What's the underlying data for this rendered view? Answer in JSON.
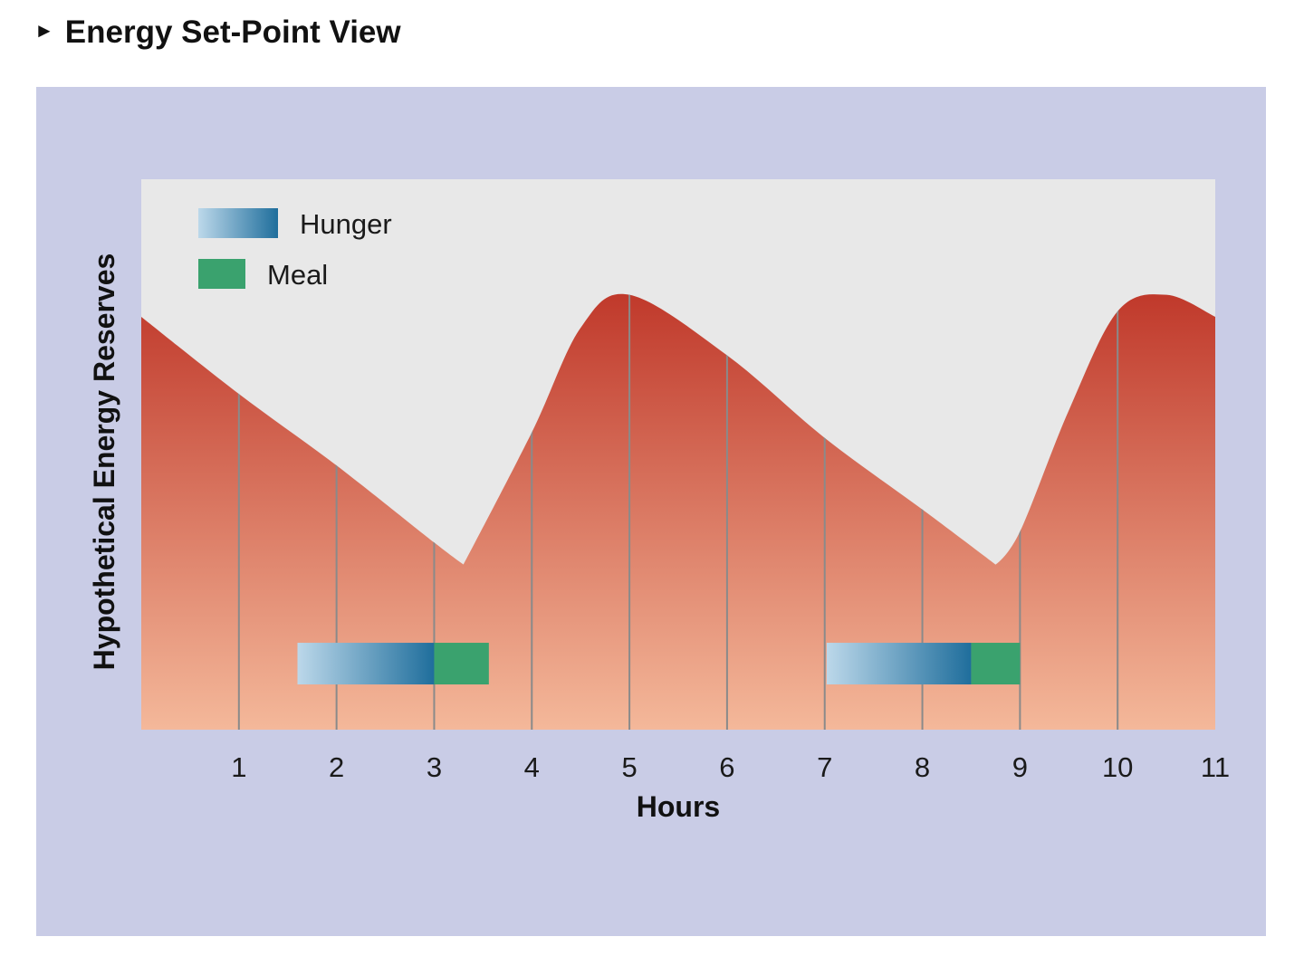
{
  "header": {
    "title": "Energy Set-Point View",
    "arrow_glyph": "►"
  },
  "chart_data": {
    "type": "area",
    "xlabel": "Hours",
    "ylabel": "Hypothetical Energy Reserves",
    "xlim": [
      0,
      11
    ],
    "ylim": [
      0,
      10
    ],
    "x_ticks": [
      1,
      2,
      3,
      4,
      5,
      6,
      7,
      8,
      9,
      10,
      11
    ],
    "series": [
      {
        "values_x": [
          0,
          1,
          2,
          3,
          3.3,
          4,
          4.5,
          5,
          6,
          7,
          8,
          8.75,
          9,
          9.5,
          10,
          10.5,
          11
        ],
        "values_y": [
          7.5,
          6.1,
          4.8,
          3.4,
          3.0,
          5.4,
          7.3,
          7.9,
          6.8,
          5.3,
          4.0,
          3.0,
          3.6,
          5.8,
          7.6,
          7.9,
          7.5
        ]
      }
    ],
    "legend": {
      "position": "top-left",
      "entries": [
        {
          "label": "Hunger",
          "kind": "hunger"
        },
        {
          "label": "Meal",
          "kind": "meal"
        }
      ]
    },
    "intervals": [
      {
        "kind": "hunger",
        "start": 1.6,
        "end": 3.0
      },
      {
        "kind": "meal",
        "start": 3.0,
        "end": 3.56
      },
      {
        "kind": "hunger",
        "start": 7.02,
        "end": 8.5
      },
      {
        "kind": "meal",
        "start": 8.5,
        "end": 9.0
      }
    ],
    "interval_level": 1.2,
    "grid": true,
    "colors": {
      "panel_background": "#c9cce6",
      "plot_background": "#e8e8e8",
      "fill_top": "#c0392b",
      "fill_bottom": "#f4b89a",
      "gridline": "#8a8a8a",
      "hunger_start": "#bcd8ea",
      "hunger_end": "#1f6e9c",
      "meal": "#3aa26e"
    }
  }
}
